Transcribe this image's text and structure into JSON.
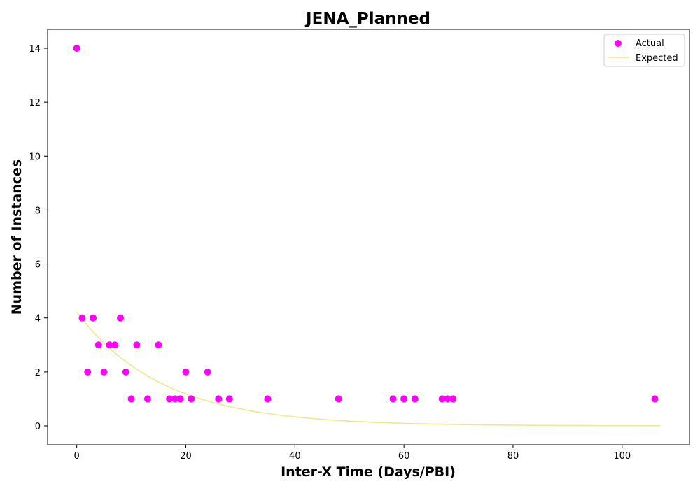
{
  "chart_data": {
    "type": "scatter",
    "title": "JENA_Planned",
    "xlabel": "Inter-X Time (Days/PBI)",
    "ylabel": "Number of Instances",
    "xlim": [
      -5.35,
      112.35
    ],
    "ylim": [
      -0.7,
      14.7
    ],
    "xticks": [
      0,
      20,
      40,
      60,
      80,
      100
    ],
    "yticks": [
      0,
      2,
      4,
      6,
      8,
      10,
      12,
      14
    ],
    "grid": false,
    "legend_position": "top-right",
    "series": [
      {
        "name": "Actual",
        "kind": "scatter",
        "color": "#ff00ff",
        "points": [
          [
            0,
            14
          ],
          [
            1,
            4
          ],
          [
            2,
            2
          ],
          [
            3,
            4
          ],
          [
            4,
            3
          ],
          [
            5,
            2
          ],
          [
            6,
            3
          ],
          [
            7,
            3
          ],
          [
            8,
            4
          ],
          [
            9,
            2
          ],
          [
            10,
            1
          ],
          [
            11,
            3
          ],
          [
            13,
            1
          ],
          [
            15,
            3
          ],
          [
            17,
            1
          ],
          [
            18,
            1
          ],
          [
            19,
            1
          ],
          [
            20,
            2
          ],
          [
            21,
            1
          ],
          [
            24,
            2
          ],
          [
            26,
            1
          ],
          [
            28,
            1
          ],
          [
            35,
            1
          ],
          [
            48,
            1
          ],
          [
            58,
            1
          ],
          [
            60,
            1
          ],
          [
            62,
            1
          ],
          [
            67,
            1
          ],
          [
            68,
            1
          ],
          [
            69,
            1
          ],
          [
            106,
            1
          ]
        ]
      },
      {
        "name": "Expected",
        "kind": "line",
        "color": "#f0e68c",
        "model": "exponential",
        "amplitude": 4.22,
        "decay_rate": 0.0635,
        "x_range": [
          0,
          107
        ]
      }
    ]
  }
}
